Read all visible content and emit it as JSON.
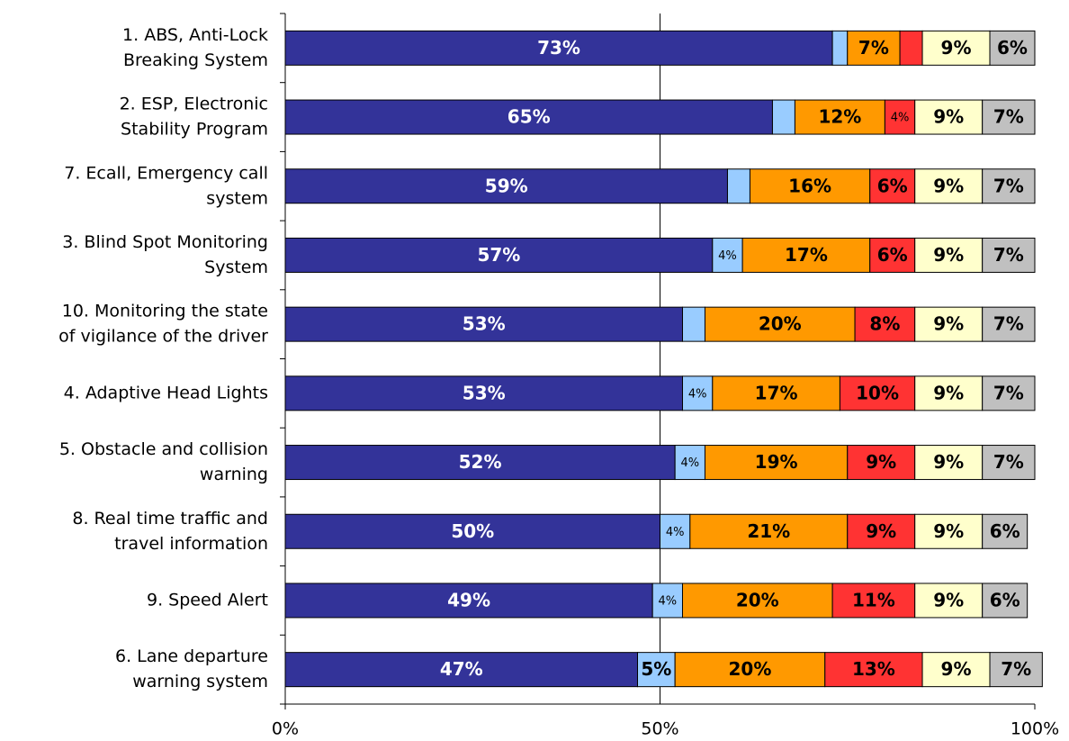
{
  "chart_data": {
    "type": "stacked_barh",
    "categories": [
      [
        "1. ABS, Anti-Lock",
        "Breaking System"
      ],
      [
        "2. ESP, Electronic",
        "Stability Program"
      ],
      [
        "7. Ecall, Emergency call",
        "system"
      ],
      [
        "3. Blind Spot Monitoring",
        "System"
      ],
      [
        "10. Monitoring the state",
        "of vigilance of the driver"
      ],
      [
        "4. Adaptive Head Lights"
      ],
      [
        "5. Obstacle and collision",
        "warning"
      ],
      [
        "8. Real time traffic and",
        "travel information"
      ],
      [
        "9. Speed Alert"
      ],
      [
        "6. Lane departure",
        "warning system"
      ]
    ],
    "series": [
      {
        "color": "#333399",
        "label_color": "#ffffff",
        "values": [
          73,
          65,
          59,
          57,
          53,
          53,
          52,
          50,
          49,
          47
        ],
        "value_labels": [
          "73%",
          "65%",
          "59%",
          "57%",
          "53%",
          "53%",
          "52%",
          "50%",
          "49%",
          "47%"
        ]
      },
      {
        "color": "#99ccff",
        "label_color": "#000000",
        "values": [
          2,
          3,
          3,
          4,
          3,
          4,
          4,
          4,
          4,
          5
        ],
        "value_labels": [
          null,
          null,
          null,
          "4%",
          null,
          "4%",
          "4%",
          "4%",
          "4%",
          "5%"
        ]
      },
      {
        "color": "#ff9900",
        "label_color": "#000000",
        "values": [
          7,
          12,
          16,
          17,
          20,
          17,
          19,
          21,
          20,
          20
        ],
        "value_labels": [
          "7%",
          "12%",
          "16%",
          "17%",
          "20%",
          "17%",
          "19%",
          "21%",
          "20%",
          "20%"
        ]
      },
      {
        "color": "#ff3333",
        "label_color": "#000000",
        "values": [
          3,
          4,
          6,
          6,
          8,
          10,
          9,
          9,
          11,
          13
        ],
        "value_labels": [
          null,
          "4%",
          "6%",
          "6%",
          "8%",
          "10%",
          "9%",
          "9%",
          "11%",
          "13%"
        ]
      },
      {
        "color": "#ffffcc",
        "label_color": "#000000",
        "values": [
          9,
          9,
          9,
          9,
          9,
          9,
          9,
          9,
          9,
          9
        ],
        "value_labels": [
          "9%",
          "9%",
          "9%",
          "9%",
          "9%",
          "9%",
          "9%",
          "9%",
          "9%",
          "9%"
        ]
      },
      {
        "color": "#c0c0c0",
        "label_color": "#000000",
        "values": [
          6,
          7,
          7,
          7,
          7,
          7,
          7,
          6,
          6,
          7
        ],
        "value_labels": [
          "6%",
          "7%",
          "7%",
          "7%",
          "7%",
          "7%",
          "7%",
          "6%",
          "6%",
          "7%"
        ]
      }
    ],
    "xlim": [
      0,
      100
    ],
    "xticks": [
      {
        "value": 0,
        "label": "0%"
      },
      {
        "value": 50,
        "label": "50%"
      },
      {
        "value": 100,
        "label": "100%"
      }
    ],
    "grid": true
  }
}
